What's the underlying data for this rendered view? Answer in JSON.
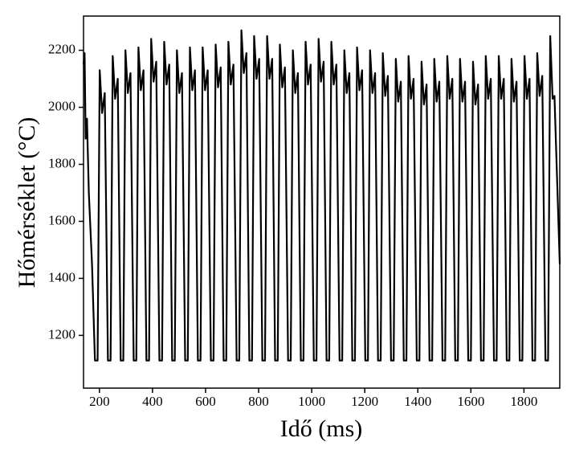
{
  "chart_data": {
    "type": "line",
    "xlabel": "Idő (ms)",
    "ylabel": "Hőmérséklet (°C)",
    "color": "#000000",
    "grid": false,
    "xlim": [
      140,
      1935
    ],
    "ylim": [
      1015,
      2320
    ],
    "xticks": [
      200,
      400,
      600,
      800,
      1000,
      1200,
      1400,
      1600,
      1800
    ],
    "yticks": [
      1200,
      1400,
      1600,
      1800,
      2000,
      2200
    ],
    "x": [
      140,
      144,
      148,
      153,
      160,
      172,
      183,
      193,
      201,
      210,
      220,
      232,
      242,
      250,
      259,
      269,
      280,
      290,
      298,
      307,
      317,
      329,
      339,
      347,
      356,
      366,
      377,
      387,
      395,
      404,
      414,
      426,
      436,
      444,
      453,
      463,
      474,
      484,
      492,
      501,
      511,
      523,
      533,
      541,
      550,
      560,
      571,
      581,
      589,
      598,
      608,
      620,
      630,
      638,
      647,
      657,
      668,
      678,
      686,
      695,
      705,
      717,
      727,
      735,
      744,
      754,
      765,
      775,
      783,
      792,
      802,
      814,
      824,
      832,
      841,
      851,
      862,
      872,
      880,
      889,
      899,
      911,
      921,
      929,
      938,
      948,
      959,
      969,
      977,
      986,
      996,
      1008,
      1018,
      1026,
      1035,
      1045,
      1056,
      1066,
      1074,
      1083,
      1093,
      1105,
      1115,
      1123,
      1132,
      1142,
      1153,
      1163,
      1171,
      1180,
      1190,
      1202,
      1212,
      1220,
      1229,
      1239,
      1250,
      1260,
      1268,
      1277,
      1287,
      1299,
      1309,
      1317,
      1326,
      1336,
      1347,
      1357,
      1365,
      1374,
      1384,
      1396,
      1406,
      1414,
      1423,
      1433,
      1444,
      1454,
      1462,
      1471,
      1481,
      1493,
      1503,
      1511,
      1520,
      1530,
      1541,
      1551,
      1559,
      1568,
      1578,
      1590,
      1600,
      1608,
      1617,
      1627,
      1638,
      1648,
      1656,
      1665,
      1675,
      1687,
      1697,
      1705,
      1714,
      1724,
      1735,
      1745,
      1753,
      1762,
      1772,
      1784,
      1794,
      1802,
      1811,
      1821,
      1832,
      1842,
      1850,
      1859,
      1869,
      1881,
      1891,
      1899,
      1908,
      1915,
      1935
    ],
    "values": [
      2150,
      2190,
      1890,
      1960,
      1700,
      1450,
      1112,
      1112,
      2130,
      1980,
      2050,
      1112,
      1112,
      2180,
      2030,
      2100,
      1112,
      1112,
      2200,
      2050,
      2120,
      1112,
      1112,
      2210,
      2060,
      2130,
      1112,
      1112,
      2240,
      2090,
      2160,
      1112,
      1112,
      2230,
      2080,
      2150,
      1112,
      1112,
      2200,
      2050,
      2120,
      1112,
      1112,
      2210,
      2060,
      2130,
      1112,
      1112,
      2210,
      2060,
      2130,
      1112,
      1112,
      2220,
      2070,
      2140,
      1112,
      1112,
      2230,
      2080,
      2150,
      1112,
      1112,
      2270,
      2120,
      2190,
      1112,
      1112,
      2250,
      2100,
      2170,
      1112,
      1112,
      2250,
      2100,
      2170,
      1112,
      1112,
      2220,
      2070,
      2140,
      1112,
      1112,
      2200,
      2050,
      2120,
      1112,
      1112,
      2230,
      2080,
      2150,
      1112,
      1112,
      2240,
      2090,
      2160,
      1112,
      1112,
      2230,
      2080,
      2150,
      1112,
      1112,
      2200,
      2050,
      2120,
      1112,
      1112,
      2210,
      2060,
      2130,
      1112,
      1112,
      2200,
      2050,
      2120,
      1112,
      1112,
      2190,
      2040,
      2110,
      1112,
      1112,
      2170,
      2020,
      2090,
      1112,
      1112,
      2180,
      2030,
      2100,
      1112,
      1112,
      2160,
      2010,
      2080,
      1112,
      1112,
      2170,
      2020,
      2090,
      1112,
      1112,
      2180,
      2030,
      2100,
      1112,
      1112,
      2170,
      2020,
      2090,
      1112,
      1112,
      2160,
      2010,
      2080,
      1112,
      1112,
      2180,
      2030,
      2100,
      1112,
      1112,
      2180,
      2030,
      2100,
      1112,
      1112,
      2170,
      2020,
      2090,
      1112,
      1112,
      2180,
      2030,
      2100,
      1112,
      1112,
      2190,
      2040,
      2110,
      1112,
      1112,
      2250,
      2030,
      2040,
      1450
    ]
  }
}
